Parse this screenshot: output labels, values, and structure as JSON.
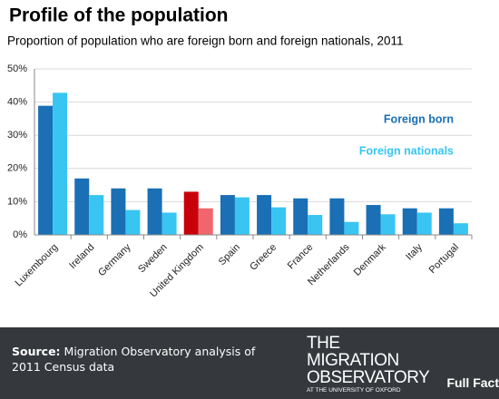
{
  "chart_data": {
    "type": "bar",
    "title": "Profile of the population",
    "subtitle": "Proportion of population who are foreign born and foreign nationals, 2011",
    "categories": [
      "Luxembourg",
      "Ireland",
      "Germany",
      "Sweden",
      "United Kingdom",
      "Spain",
      "Greece",
      "France",
      "Netherlands",
      "Denmark",
      "Italy",
      "Portugal"
    ],
    "series": [
      {
        "name": "Foreign born",
        "color": "#1a6fb5",
        "colors": [
          "#1a6fb5",
          "#1a6fb5",
          "#1a6fb5",
          "#1a6fb5",
          "#c8000a",
          "#1a6fb5",
          "#1a6fb5",
          "#1a6fb5",
          "#1a6fb5",
          "#1a6fb5",
          "#1a6fb5",
          "#1a6fb5"
        ],
        "values": [
          38.9,
          17,
          14,
          14,
          13,
          12,
          12,
          11,
          11,
          9,
          8,
          8
        ]
      },
      {
        "name": "Foreign nationals",
        "color": "#38c5f2",
        "colors": [
          "#38c5f2",
          "#38c5f2",
          "#38c5f2",
          "#38c5f2",
          "#f0666c",
          "#38c5f2",
          "#38c5f2",
          "#38c5f2",
          "#38c5f2",
          "#38c5f2",
          "#38c5f2",
          "#38c5f2"
        ],
        "values": [
          42.8,
          12,
          7.5,
          6.7,
          8,
          11.3,
          8.3,
          6,
          3.9,
          6.2,
          6.7,
          3.5
        ]
      }
    ],
    "ylim": [
      0,
      50
    ],
    "yticks": [
      {
        "value": 0,
        "label": "0%"
      },
      {
        "value": 10,
        "label": "10%"
      },
      {
        "value": 20,
        "label": "20%"
      },
      {
        "value": 30,
        "label": "30%"
      },
      {
        "value": 40,
        "label": "40%"
      },
      {
        "value": 50,
        "label": "50%"
      }
    ],
    "grid": true
  },
  "footer": {
    "source_label": "Source:",
    "source_text": "Migration Observatory analysis of 2011 Census data",
    "logo_line1": "THE",
    "logo_line2": "MIGRATION",
    "logo_line3": "OBSERVATORY",
    "logo_sub": "AT THE UNIVERSITY OF OXFORD",
    "badge": "Full Fact"
  }
}
